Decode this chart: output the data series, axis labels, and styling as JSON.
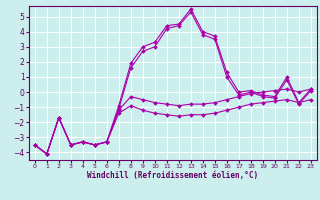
{
  "xlabel": "Windchill (Refroidissement éolien,°C)",
  "bg_color": "#cceeed",
  "grid_color": "#aadddd",
  "line_color": "#aa00aa",
  "xlim": [
    -0.5,
    23.5
  ],
  "ylim": [
    -4.5,
    5.7
  ],
  "xticks": [
    0,
    1,
    2,
    3,
    4,
    5,
    6,
    7,
    8,
    9,
    10,
    11,
    12,
    13,
    14,
    15,
    16,
    17,
    18,
    19,
    20,
    21,
    22,
    23
  ],
  "yticks": [
    -4,
    -3,
    -2,
    -1,
    0,
    1,
    2,
    3,
    4,
    5
  ],
  "series": [
    {
      "x": [
        0,
        1,
        2,
        3,
        4,
        5,
        6,
        7,
        8,
        9,
        10,
        11,
        12,
        13,
        14,
        15,
        16,
        17,
        18,
        19,
        20,
        21,
        22,
        23
      ],
      "y": [
        -3.5,
        -4.1,
        -1.7,
        -3.5,
        -3.3,
        -3.5,
        -3.3,
        -0.9,
        1.9,
        3.0,
        3.3,
        4.4,
        4.5,
        5.5,
        4.0,
        3.7,
        1.3,
        0.0,
        0.1,
        -0.2,
        -0.3,
        1.0,
        -0.7,
        0.2
      ]
    },
    {
      "x": [
        0,
        1,
        2,
        3,
        4,
        5,
        6,
        7,
        8,
        9,
        10,
        11,
        12,
        13,
        14,
        15,
        16,
        17,
        18,
        19,
        20,
        21,
        22,
        23
      ],
      "y": [
        -3.5,
        -4.1,
        -1.7,
        -3.5,
        -3.3,
        -3.5,
        -3.3,
        -1.1,
        1.6,
        2.7,
        3.0,
        4.2,
        4.4,
        5.3,
        3.8,
        3.5,
        1.0,
        -0.2,
        0.0,
        -0.3,
        -0.4,
        0.8,
        -0.8,
        0.1
      ]
    },
    {
      "x": [
        0,
        1,
        2,
        3,
        4,
        5,
        6,
        7,
        8,
        9,
        10,
        11,
        12,
        13,
        14,
        15,
        16,
        17,
        18,
        19,
        20,
        21,
        22,
        23
      ],
      "y": [
        -3.5,
        -4.1,
        -1.7,
        -3.5,
        -3.3,
        -3.5,
        -3.3,
        -1.2,
        -0.3,
        -0.5,
        -0.7,
        -0.8,
        -0.9,
        -0.8,
        -0.8,
        -0.7,
        -0.5,
        -0.3,
        -0.1,
        0.0,
        0.1,
        0.2,
        0.0,
        0.2
      ]
    },
    {
      "x": [
        0,
        1,
        2,
        3,
        4,
        5,
        6,
        7,
        8,
        9,
        10,
        11,
        12,
        13,
        14,
        15,
        16,
        17,
        18,
        19,
        20,
        21,
        22,
        23
      ],
      "y": [
        -3.5,
        -4.1,
        -1.7,
        -3.5,
        -3.3,
        -3.5,
        -3.3,
        -1.4,
        -0.9,
        -1.2,
        -1.4,
        -1.5,
        -1.6,
        -1.5,
        -1.5,
        -1.4,
        -1.2,
        -1.0,
        -0.8,
        -0.7,
        -0.6,
        -0.5,
        -0.7,
        -0.5
      ]
    }
  ]
}
